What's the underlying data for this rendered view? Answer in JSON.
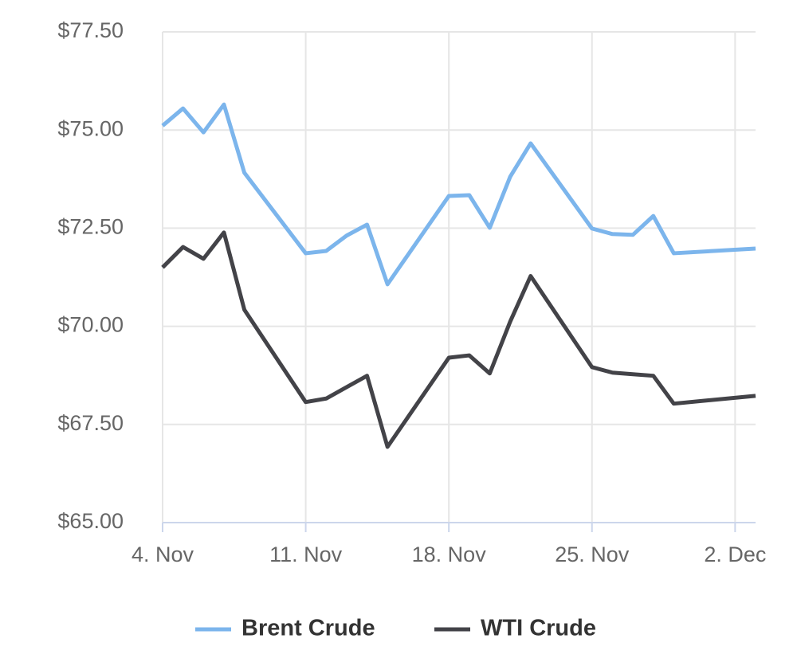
{
  "chart_data": {
    "type": "line",
    "x": [
      "4. Nov",
      "5. Nov",
      "6. Nov",
      "7. Nov",
      "8. Nov",
      "11. Nov",
      "12. Nov",
      "13. Nov",
      "14. Nov",
      "15. Nov",
      "18. Nov",
      "19. Nov",
      "20. Nov",
      "21. Nov",
      "22. Nov",
      "25. Nov",
      "26. Nov",
      "27. Nov",
      "28. Nov",
      "29. Nov",
      "3. Dec"
    ],
    "series": [
      {
        "name": "Brent Crude",
        "color": "#7cb5ec",
        "values": [
          75.11,
          75.55,
          74.94,
          75.65,
          73.91,
          71.86,
          71.92,
          72.31,
          72.59,
          71.07,
          73.32,
          73.34,
          72.51,
          73.81,
          74.66,
          72.49,
          72.35,
          72.33,
          72.81,
          71.86,
          71.98
        ]
      },
      {
        "name": "WTI Crude",
        "color": "#434348",
        "values": [
          71.5,
          72.02,
          71.72,
          72.39,
          70.42,
          68.07,
          68.16,
          68.45,
          68.74,
          66.93,
          69.2,
          69.26,
          68.8,
          70.12,
          71.28,
          68.96,
          68.82,
          68.78,
          68.74,
          68.03,
          68.23
        ]
      }
    ],
    "xlim": [
      "4. Nov",
      "3. Dec"
    ],
    "xticks": [
      "4. Nov",
      "11. Nov",
      "18. Nov",
      "25. Nov",
      "2. Dec"
    ],
    "ylim": [
      65,
      77.5
    ],
    "yticks": [
      {
        "value": 65,
        "label": "$65.00"
      },
      {
        "value": 67.5,
        "label": "$67.50"
      },
      {
        "value": 70,
        "label": "$70.00"
      },
      {
        "value": 72.5,
        "label": "$72.50"
      },
      {
        "value": 75,
        "label": "$75.00"
      },
      {
        "value": 77.5,
        "label": "$77.50"
      }
    ],
    "grid": true,
    "legend": "bottom"
  }
}
